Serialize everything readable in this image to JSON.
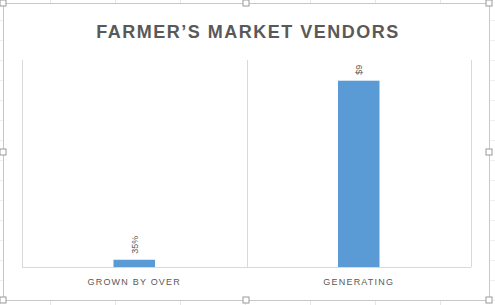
{
  "chart_data": {
    "type": "bar",
    "title": "FARMER’S MARKET VENDORS",
    "categories": [
      "GROWN BY OVER",
      "GENERATING"
    ],
    "values": [
      0.35,
      9
    ],
    "value_labels": [
      "35%",
      "$9"
    ],
    "color": "#5b9bd5",
    "ylim": [
      0,
      10
    ],
    "grid": true,
    "data_labels": true,
    "tick_labels": "x"
  }
}
